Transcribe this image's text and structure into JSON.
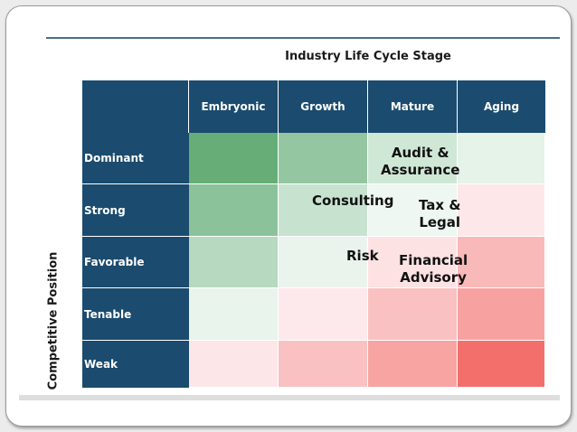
{
  "axis": {
    "columns_title": "Industry Life Cycle Stage",
    "rows_title": "Competitive Position"
  },
  "columns": [
    "Embryonic",
    "Growth",
    "Mature",
    "Aging"
  ],
  "rows": [
    "Dominant",
    "Strong",
    "Favorable",
    "Tenable",
    "Weak"
  ],
  "cell_colors": [
    [
      "#66ad78",
      "#94c7a1",
      "#cfe8d6",
      "#e5f3e9"
    ],
    [
      "#8cc29a",
      "#c7e3cf",
      "#eef7f1",
      "#fde7e9"
    ],
    [
      "#b6d9bf",
      "#eaf4ed",
      "#fde2e4",
      "#f9b9b9"
    ],
    [
      "#e9f4ec",
      "#fde9eb",
      "#f9c1c1",
      "#f7a2a0"
    ],
    [
      "#fde6e8",
      "#f9c1c1",
      "#f7a4a3",
      "#f26f6c"
    ]
  ],
  "services": {
    "audit_assurance": [
      "Audit &",
      "Assurance"
    ],
    "consulting": "Consulting",
    "tax_legal": [
      "Tax &",
      "Legal"
    ],
    "risk": "Risk",
    "financial_advisory": [
      "Financial",
      "Advisory"
    ]
  }
}
